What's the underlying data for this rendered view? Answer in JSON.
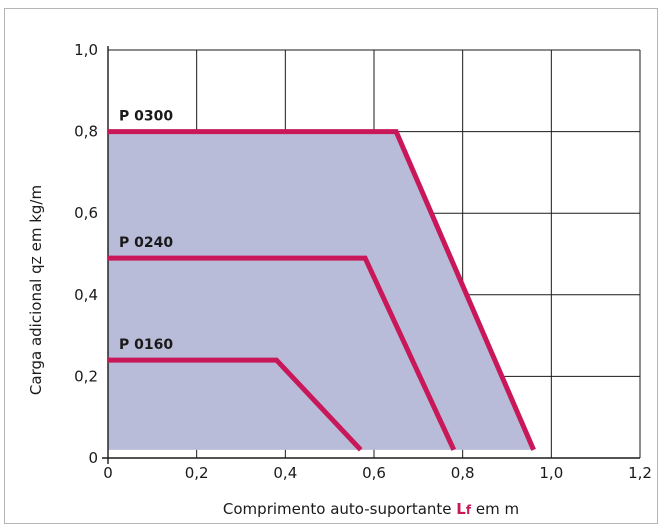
{
  "chart_data": {
    "type": "area",
    "xlabel_parts": [
      "Comprimento auto-suportante ",
      "L",
      "f",
      " em m"
    ],
    "ylabel_parts": [
      "Carga adicional q",
      "Z",
      " em kg/m"
    ],
    "xlim": [
      0,
      1.2
    ],
    "ylim": [
      0,
      1.0
    ],
    "x_ticks": [
      0,
      0.2,
      0.4,
      0.6,
      0.8,
      1.0,
      1.2
    ],
    "x_tick_labels": [
      "0",
      "0,2",
      "0,4",
      "0,6",
      "0,8",
      "1,0",
      "1,2"
    ],
    "y_ticks": [
      0,
      0.2,
      0.4,
      0.6,
      0.8,
      1.0
    ],
    "y_tick_labels": [
      "0",
      "0,2",
      "0,4",
      "0,6",
      "0,8",
      "1,0"
    ],
    "grid": true,
    "fill_color": "#b9bcd9",
    "line_color": "#c8185a",
    "accent_color": "#c8185a",
    "series": [
      {
        "name": "P 0300",
        "x": [
          0,
          0.65,
          0.96
        ],
        "y": [
          0.8,
          0.8,
          0.02
        ]
      },
      {
        "name": "P 0240",
        "x": [
          0,
          0.58,
          0.78
        ],
        "y": [
          0.49,
          0.49,
          0.02
        ]
      },
      {
        "name": "P 0160",
        "x": [
          0,
          0.38,
          0.57
        ],
        "y": [
          0.24,
          0.24,
          0.02
        ]
      }
    ]
  }
}
